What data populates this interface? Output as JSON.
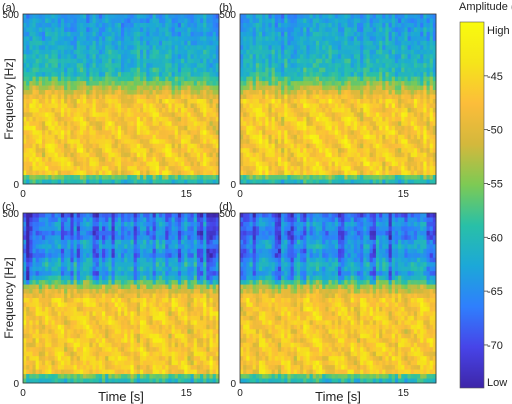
{
  "chart_data": {
    "type": "heatmap",
    "colorbar": {
      "title": "Amplitude (dB)",
      "top_label": "High",
      "bottom_label": "Low",
      "ticks": [
        "-45",
        "-50",
        "-55",
        "-60",
        "-65",
        "-70"
      ],
      "tick_values": [
        -45,
        -50,
        -55,
        -60,
        -65,
        -70
      ],
      "range": [
        -74,
        -40
      ],
      "colormap": [
        "#3e26a8",
        "#4744e8",
        "#2f7ffd",
        "#1ca8d8",
        "#29c0a7",
        "#7dca54",
        "#d4b83c",
        "#fcbd3a",
        "#f5e51a",
        "#f9fb0e"
      ]
    },
    "panels": [
      {
        "label": "(a)",
        "xlabel": "",
        "ylabel": "Frequency [Hz]",
        "xticks": [
          "0",
          "15"
        ],
        "yticks": [
          "0",
          "500"
        ],
        "xlim": [
          0,
          18
        ],
        "ylim": [
          0,
          500
        ],
        "bands": false
      },
      {
        "label": "(b)",
        "xlabel": "",
        "ylabel": "",
        "xticks": [
          "0",
          "15"
        ],
        "yticks": [
          "0",
          "500"
        ],
        "xlim": [
          0,
          18
        ],
        "ylim": [
          0,
          500
        ],
        "bands": false
      },
      {
        "label": "(c)",
        "xlabel": "Time [s]",
        "ylabel": "Frequency [Hz]",
        "xticks": [
          "0",
          "15"
        ],
        "yticks": [
          "0",
          "500"
        ],
        "xlim": [
          0,
          18
        ],
        "ylim": [
          0,
          500
        ],
        "bands": true
      },
      {
        "label": "(d)",
        "xlabel": "Time [s]",
        "ylabel": "",
        "xticks": [
          "0",
          "15"
        ],
        "yticks": [
          "0",
          "500"
        ],
        "xlim": [
          0,
          18
        ],
        "ylim": [
          0,
          500
        ],
        "bands": true
      }
    ]
  }
}
